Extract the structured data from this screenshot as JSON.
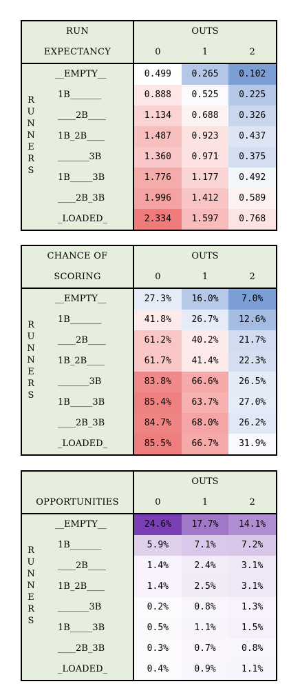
{
  "outs_label": "OUTS",
  "outs_cols": [
    "0",
    "1",
    "2"
  ],
  "runner_states": [
    "__EMPTY__",
    "1B_______",
    "____2B____",
    "1B_2B____",
    "_______3B",
    "1B_____3B",
    "____2B_3B",
    "_LOADED_"
  ],
  "vertical_label": [
    "R",
    "U",
    "N",
    "N",
    "E",
    "R",
    "S"
  ],
  "tables": [
    {
      "title_lines": [
        "RUN",
        "EXPECTANCY"
      ],
      "rows": [
        [
          "0.499",
          "0.265",
          "0.102"
        ],
        [
          "0.888",
          "0.525",
          "0.225"
        ],
        [
          "1.134",
          "0.688",
          "0.326"
        ],
        [
          "1.487",
          "0.923",
          "0.437"
        ],
        [
          "1.360",
          "0.971",
          "0.375"
        ],
        [
          "1.776",
          "1.177",
          "0.492"
        ],
        [
          "1.996",
          "1.412",
          "0.589"
        ],
        [
          "2.334",
          "1.597",
          "0.768"
        ]
      ],
      "colors": [
        [
          "#ffffff",
          "#b4c7e7",
          "#7b9fd4"
        ],
        [
          "#fde6e6",
          "#fbfbfe",
          "#b6c8e8"
        ],
        [
          "#fbd3d3",
          "#fef3f3",
          "#c9d7ee"
        ],
        [
          "#f8bfbf",
          "#fde2e2",
          "#dde5f4"
        ],
        [
          "#f9c7c7",
          "#fde0e0",
          "#d3def1"
        ],
        [
          "#f6abab",
          "#fbd5d5",
          "#f3f6fb"
        ],
        [
          "#f4a2a2",
          "#f9c4c4",
          "#fdf1f1"
        ],
        [
          "#ef7b7b",
          "#f8bcbc",
          "#fde4e4"
        ]
      ]
    },
    {
      "title_lines": [
        "CHANCE OF",
        "SCORING"
      ],
      "rows": [
        [
          "27.3%",
          "16.0%",
          "7.0%"
        ],
        [
          "41.8%",
          "26.7%",
          "12.6%"
        ],
        [
          "61.2%",
          "40.2%",
          "21.7%"
        ],
        [
          "61.7%",
          "41.4%",
          "22.3%"
        ],
        [
          "83.8%",
          "66.6%",
          "26.5%"
        ],
        [
          "85.4%",
          "63.7%",
          "27.0%"
        ],
        [
          "84.7%",
          "68.0%",
          "26.2%"
        ],
        [
          "85.5%",
          "66.7%",
          "31.9%"
        ]
      ],
      "colors": [
        [
          "#e5ecf7",
          "#b7c9e8",
          "#7b9fd4"
        ],
        [
          "#fdeaea",
          "#e5ecf7",
          "#a4bce2"
        ],
        [
          "#f9c6c6",
          "#fdebeb",
          "#d1dcf0"
        ],
        [
          "#f9c5c5",
          "#fde9e9",
          "#d4def1"
        ],
        [
          "#f08a8a",
          "#f6a9a9",
          "#e4ebf6"
        ],
        [
          "#ef8080",
          "#f7b1b1",
          "#e6ecf7"
        ],
        [
          "#ef8484",
          "#f5a5a5",
          "#e2e9f6"
        ],
        [
          "#ee7e7e",
          "#f6a9a9",
          "#f9fafd"
        ]
      ]
    },
    {
      "title_lines": [
        "",
        "OPPORTUNITIES"
      ],
      "rows": [
        [
          "24.6%",
          "17.7%",
          "14.1%"
        ],
        [
          "5.9%",
          "7.1%",
          "7.2%"
        ],
        [
          "1.4%",
          "2.4%",
          "3.1%"
        ],
        [
          "1.4%",
          "2.5%",
          "3.1%"
        ],
        [
          "0.2%",
          "0.8%",
          "1.3%"
        ],
        [
          "0.5%",
          "1.1%",
          "1.5%"
        ],
        [
          "0.3%",
          "0.7%",
          "0.8%"
        ],
        [
          "0.4%",
          "0.9%",
          "1.1%"
        ]
      ],
      "colors": [
        [
          "#7b3fb5",
          "#a177c7",
          "#b18ed1"
        ],
        [
          "#dfd0ec",
          "#d9c8e9",
          "#d9c7e9"
        ],
        [
          "#f7f2fb",
          "#f2ebf8",
          "#efe6f6"
        ],
        [
          "#f7f2fb",
          "#f1eaf7",
          "#efe6f6"
        ],
        [
          "#fdfbfe",
          "#f9f5fc",
          "#f7f2fb"
        ],
        [
          "#fcf9fd",
          "#f8f4fb",
          "#f6f0fa"
        ],
        [
          "#fdfbfe",
          "#faf6fc",
          "#f9f5fc"
        ],
        [
          "#fcfafd",
          "#f9f5fc",
          "#f8f4fb"
        ]
      ]
    }
  ]
}
